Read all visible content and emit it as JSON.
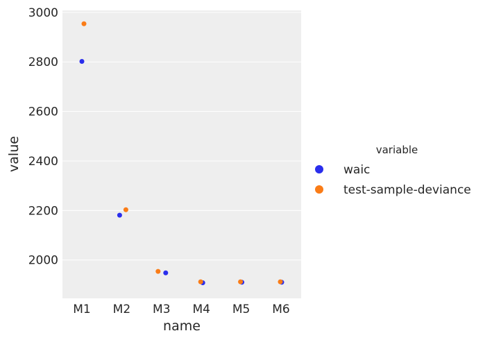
{
  "chart_data": {
    "type": "scatter",
    "categories": [
      "M1",
      "M2",
      "M3",
      "M4",
      "M5",
      "M6"
    ],
    "series": [
      {
        "name": "waic",
        "color": "#2a2eec",
        "values": [
          2802,
          2181,
          1948,
          1908,
          1910,
          1910
        ]
      },
      {
        "name": "test-sample-deviance",
        "color": "#fa7c17",
        "values": [
          2954,
          2203,
          1954,
          1912,
          1912,
          1912
        ]
      }
    ],
    "xlabel": "name",
    "ylabel": "value",
    "ylim": [
      1845,
      3008
    ],
    "yticks": [
      2000,
      2200,
      2400,
      2600,
      2800,
      3000
    ],
    "grid": true,
    "background": "#eeeeee",
    "legend": {
      "title": "variable",
      "placement": "right"
    }
  }
}
